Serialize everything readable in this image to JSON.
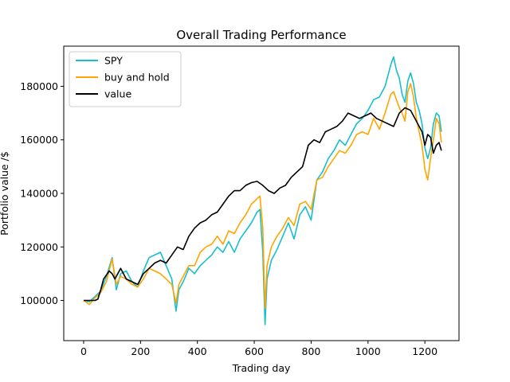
{
  "chart_data": {
    "type": "line",
    "title": "Overall Trading Performance",
    "xlabel": "Trading day",
    "ylabel": "Portfolio value /$",
    "xlim": [
      -70,
      1320
    ],
    "ylim": [
      85000,
      195000
    ],
    "xticks": [
      0,
      200,
      400,
      600,
      800,
      1000,
      1200
    ],
    "yticks": [
      100000,
      120000,
      140000,
      160000,
      180000
    ],
    "grid": false,
    "legend_position": "top-left",
    "series": [
      {
        "name": "SPY",
        "color": "#17becf",
        "x": [
          0,
          20,
          40,
          60,
          80,
          100,
          115,
          130,
          150,
          170,
          190,
          210,
          230,
          250,
          270,
          290,
          310,
          325,
          335,
          350,
          370,
          390,
          410,
          430,
          450,
          470,
          490,
          510,
          530,
          550,
          570,
          590,
          610,
          620,
          630,
          638,
          645,
          660,
          680,
          700,
          720,
          740,
          760,
          780,
          800,
          820,
          840,
          860,
          880,
          900,
          920,
          940,
          960,
          980,
          1000,
          1020,
          1040,
          1060,
          1080,
          1090,
          1100,
          1110,
          1120,
          1130,
          1140,
          1150,
          1160,
          1170,
          1180,
          1190,
          1200,
          1210,
          1220,
          1230,
          1240,
          1250,
          1258
        ],
        "y": [
          100000,
          99500,
          101500,
          103500,
          109000,
          116000,
          104000,
          110000,
          111000,
          107000,
          105000,
          111000,
          116000,
          117000,
          118000,
          113000,
          108000,
          96000,
          104000,
          107000,
          112000,
          110000,
          113000,
          115000,
          117000,
          120000,
          118000,
          122000,
          118000,
          123000,
          126000,
          129000,
          133000,
          134000,
          118000,
          91000,
          108000,
          115000,
          119000,
          124000,
          129000,
          123000,
          132000,
          135000,
          130000,
          145000,
          148000,
          153000,
          156000,
          160000,
          158000,
          162000,
          166000,
          168000,
          171000,
          175000,
          176000,
          180000,
          188000,
          191000,
          186000,
          183000,
          177000,
          174000,
          182000,
          185000,
          181000,
          174000,
          171000,
          166000,
          157000,
          153000,
          157000,
          166000,
          170000,
          169000,
          163000
        ]
      },
      {
        "name": "buy and hold",
        "color": "#ffa500",
        "x": [
          0,
          20,
          40,
          60,
          80,
          100,
          115,
          130,
          150,
          170,
          190,
          210,
          230,
          250,
          270,
          290,
          310,
          325,
          335,
          350,
          370,
          390,
          410,
          430,
          450,
          470,
          490,
          510,
          530,
          550,
          570,
          590,
          610,
          620,
          630,
          638,
          645,
          660,
          680,
          700,
          720,
          740,
          760,
          780,
          800,
          820,
          840,
          860,
          880,
          900,
          920,
          940,
          960,
          980,
          1000,
          1020,
          1040,
          1060,
          1080,
          1090,
          1100,
          1110,
          1120,
          1130,
          1140,
          1150,
          1160,
          1170,
          1180,
          1190,
          1200,
          1210,
          1220,
          1230,
          1240,
          1250,
          1258
        ],
        "y": [
          100000,
          98500,
          101000,
          103000,
          107000,
          115500,
          106000,
          109000,
          108000,
          106000,
          105000,
          108000,
          112000,
          111000,
          110000,
          108000,
          106000,
          99000,
          106000,
          109000,
          113000,
          113000,
          118000,
          120000,
          121000,
          124000,
          121000,
          126000,
          125000,
          129000,
          132000,
          136000,
          138000,
          139000,
          127000,
          97000,
          113000,
          120000,
          124000,
          127000,
          131000,
          128000,
          136000,
          137000,
          134000,
          145000,
          146000,
          150000,
          153000,
          156000,
          155000,
          158000,
          162000,
          163000,
          162000,
          168000,
          164000,
          170000,
          177000,
          178000,
          175000,
          172000,
          170000,
          167000,
          178000,
          181000,
          176000,
          168000,
          163000,
          158000,
          149000,
          145000,
          153000,
          160000,
          168000,
          166000,
          159000
        ]
      },
      {
        "name": "value",
        "color": "#000000",
        "x": [
          0,
          20,
          40,
          50,
          60,
          70,
          90,
          100,
          110,
          130,
          150,
          170,
          190,
          210,
          230,
          250,
          270,
          290,
          310,
          330,
          350,
          370,
          390,
          410,
          430,
          450,
          470,
          490,
          510,
          530,
          550,
          570,
          590,
          610,
          630,
          650,
          670,
          690,
          710,
          730,
          750,
          770,
          790,
          810,
          830,
          850,
          870,
          890,
          910,
          930,
          950,
          970,
          990,
          1010,
          1030,
          1050,
          1070,
          1090,
          1110,
          1130,
          1150,
          1170,
          1190,
          1200,
          1210,
          1220,
          1230,
          1240,
          1250,
          1258
        ],
        "y": [
          100000,
          100000,
          100000,
          100500,
          104000,
          108000,
          111000,
          110000,
          108000,
          112000,
          108000,
          107000,
          106000,
          110000,
          112000,
          114000,
          115000,
          114000,
          117000,
          120000,
          119000,
          124000,
          127000,
          129000,
          130000,
          132000,
          133000,
          136000,
          139000,
          141000,
          141000,
          143000,
          144000,
          144500,
          143000,
          141000,
          140000,
          142000,
          143000,
          146000,
          148000,
          150000,
          158000,
          160000,
          159000,
          163000,
          164000,
          165000,
          167000,
          170000,
          169000,
          168000,
          169000,
          170000,
          168000,
          167000,
          166000,
          165000,
          170000,
          172000,
          171000,
          167000,
          163000,
          158000,
          162000,
          161000,
          155000,
          158000,
          159000,
          156000
        ]
      }
    ]
  }
}
